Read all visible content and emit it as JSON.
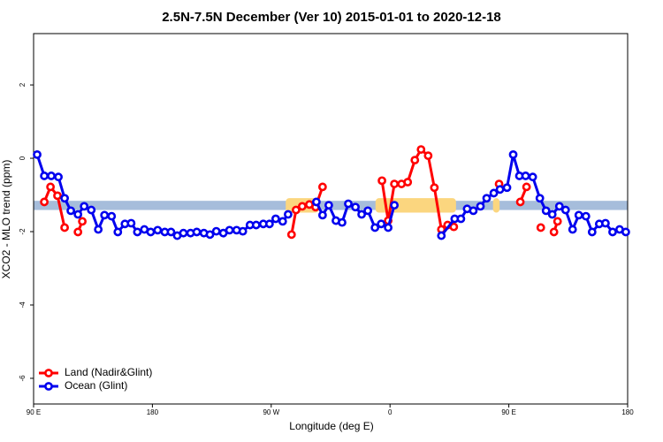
{
  "chart_data": {
    "type": "line",
    "title": "2.5N-7.5N December (Ver 10)   2015-01-01 to 2020-12-18",
    "x_label": "Longitude (deg E)",
    "y_label": "XCO2 - MLO trend (ppm)",
    "xlim": [
      90,
      540
    ],
    "ylim": [
      -6.7,
      3.4
    ],
    "xticks": [
      {
        "value": 90,
        "label": "90 E"
      },
      180,
      {
        "value": 270,
        "label": "90 W"
      },
      {
        "value": 360,
        "label": "0"
      },
      {
        "value": 450,
        "label": "90 E"
      },
      180
    ],
    "yticks": [
      -6,
      -4,
      -2,
      0,
      2
    ],
    "legend": "bottom-left",
    "band": {
      "range": [
        -1.41,
        -1.16
      ],
      "color": "#a6bddb"
    },
    "highlight_spans": {
      "spans": [
        [
          281,
          306
        ],
        [
          349,
          410
        ],
        [
          438,
          443
        ]
      ],
      "color": "#fbd67f"
    },
    "series": [
      {
        "name": "Land (Nadir&Glint)",
        "color": "#ff0000",
        "x": [
          98.1,
          102.8,
          108.1,
          113.5,
          null,
          123.6,
          126.9,
          null,
          285.4,
          288.8,
          293.5,
          298.9,
          303.6,
          308.9,
          null,
          353.9,
          358.6,
          363.3,
          368.7,
          373.4,
          378.8,
          383.5,
          388.9,
          393.6,
          398.9,
          403.6,
          408.3,
          null,
          442.6,
          null,
          458.7,
          463.4,
          null,
          474.2,
          null,
          484.2,
          486.9
        ],
        "values": [
          -1.19,
          -0.78,
          -1.02,
          -1.89,
          null,
          -2.01,
          -1.72,
          null,
          -2.08,
          -1.41,
          -1.31,
          -1.26,
          -1.33,
          -0.78,
          null,
          -0.61,
          -1.7,
          -0.7,
          -0.7,
          -0.65,
          -0.05,
          0.24,
          0.07,
          -0.8,
          -1.94,
          -1.82,
          -1.87,
          null,
          -0.7,
          null,
          -1.19,
          -0.78,
          null,
          -1.89,
          null,
          -2.01,
          -1.72
        ]
      },
      {
        "name": "Ocean (Glint)",
        "color": "#0000ee",
        "x": [
          92.7,
          98.1,
          103.4,
          108.8,
          113.5,
          118.2,
          123.6,
          128.3,
          133.7,
          139.0,
          143.7,
          149.1,
          153.8,
          159.2,
          163.9,
          168.6,
          173.9,
          178.7,
          184.0,
          189.4,
          194.1,
          198.8,
          203.5,
          208.9,
          213.6,
          219.0,
          223.6,
          228.4,
          233.7,
          238.4,
          243.8,
          248.5,
          253.9,
          258.6,
          264.0,
          268.7,
          273.4,
          278.7,
          282.8,
          null,
          304.2,
          308.9,
          313.6,
          319.0,
          323.7,
          328.4,
          333.8,
          338.5,
          343.2,
          348.6,
          353.3,
          358.6,
          363.3,
          null,
          398.9,
          409.0,
          413.7,
          418.4,
          423.1,
          428.5,
          433.2,
          438.6,
          443.3,
          448.6,
          453.3,
          458.0,
          462.7,
          468.1,
          473.5,
          478.2,
          482.9,
          488.3,
          493.0,
          498.3,
          503.0,
          508.4,
          513.1,
          518.5,
          523.2,
          528.6,
          533.9,
          538.6
        ],
        "values": [
          0.1,
          -0.48,
          -0.48,
          -0.51,
          -1.09,
          -1.43,
          -1.53,
          -1.31,
          -1.41,
          -1.94,
          -1.55,
          -1.58,
          -2.01,
          -1.79,
          -1.77,
          -2.01,
          -1.94,
          -2.01,
          -1.96,
          -2.01,
          -2.01,
          -2.11,
          -2.04,
          -2.04,
          -2.01,
          -2.04,
          -2.08,
          -1.99,
          -2.04,
          -1.96,
          -1.96,
          -1.99,
          -1.82,
          -1.82,
          -1.79,
          -1.79,
          -1.65,
          -1.72,
          -1.53,
          null,
          -1.19,
          -1.55,
          -1.28,
          -1.7,
          -1.75,
          -1.24,
          -1.33,
          -1.53,
          -1.43,
          -1.89,
          -1.79,
          -1.89,
          -1.28,
          null,
          -2.11,
          -1.65,
          -1.65,
          -1.38,
          -1.43,
          -1.31,
          -1.09,
          -0.95,
          -0.85,
          -0.8,
          0.1,
          -0.48,
          -0.48,
          -0.51,
          -1.09,
          -1.43,
          -1.53,
          -1.31,
          -1.41,
          -1.94,
          -1.55,
          -1.58,
          -2.01,
          -1.79,
          -1.77,
          -2.01,
          -1.94,
          -2.01
        ]
      }
    ]
  }
}
